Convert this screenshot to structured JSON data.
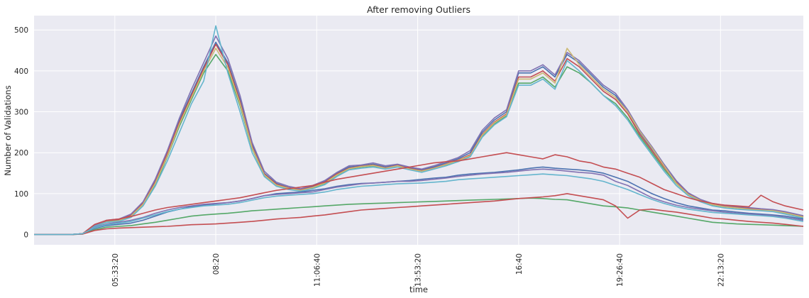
{
  "chart_data": {
    "type": "line",
    "title": "After removing Outliers",
    "xlabel": "time",
    "ylabel": "Number of Validations",
    "xlim": [
      "03:20",
      "24:30"
    ],
    "ylim": [
      -25,
      535
    ],
    "grid": true,
    "legend": "none",
    "x_ticks": [
      "05:33:20",
      "08:20",
      "11:06:40",
      "13:53:20",
      "16:40",
      "19:26:40",
      "22:13:20"
    ],
    "y_ticks": [
      0,
      100,
      200,
      300,
      400,
      500
    ],
    "x": [
      "03:20",
      "03:40",
      "04:00",
      "04:20",
      "04:40",
      "05:00",
      "05:20",
      "05:40",
      "06:00",
      "06:20",
      "06:40",
      "07:00",
      "07:20",
      "07:40",
      "08:00",
      "08:20",
      "08:40",
      "09:00",
      "09:20",
      "09:40",
      "10:00",
      "10:20",
      "10:40",
      "11:00",
      "11:20",
      "11:40",
      "12:00",
      "12:20",
      "12:40",
      "13:00",
      "13:20",
      "13:40",
      "14:00",
      "14:20",
      "14:40",
      "15:00",
      "15:20",
      "15:40",
      "16:00",
      "16:20",
      "16:40",
      "17:00",
      "17:20",
      "17:40",
      "18:00",
      "18:20",
      "18:40",
      "19:00",
      "19:20",
      "19:40",
      "20:00",
      "20:20",
      "20:40",
      "21:00",
      "21:20",
      "21:40",
      "22:00",
      "22:20",
      "22:40",
      "23:00",
      "23:20",
      "23:40",
      "24:00",
      "24:30"
    ],
    "series": [
      {
        "color": "#4c72b0",
        "values": [
          0,
          0,
          0,
          0,
          2,
          22,
          33,
          36,
          48,
          78,
          132,
          200,
          280,
          345,
          410,
          470,
          420,
          330,
          220,
          150,
          125,
          115,
          110,
          118,
          130,
          150,
          165,
          168,
          172,
          165,
          170,
          162,
          158,
          165,
          175,
          185,
          200,
          250,
          280,
          300,
          395,
          395,
          410,
          385,
          440,
          420,
          390,
          360,
          340,
          300,
          250,
          210,
          170,
          130,
          100,
          85,
          75,
          70,
          68,
          65,
          62,
          60,
          55,
          45
        ]
      },
      {
        "color": "#55a868",
        "values": [
          0,
          0,
          0,
          0,
          2,
          20,
          30,
          33,
          44,
          72,
          120,
          190,
          265,
          330,
          395,
          440,
          400,
          315,
          210,
          145,
          120,
          112,
          108,
          114,
          125,
          145,
          160,
          165,
          168,
          162,
          168,
          160,
          155,
          162,
          170,
          180,
          192,
          240,
          270,
          290,
          370,
          370,
          385,
          360,
          410,
          395,
          370,
          340,
          320,
          285,
          240,
          200,
          160,
          125,
          98,
          82,
          72,
          68,
          65,
          62,
          60,
          58,
          52,
          42
        ]
      },
      {
        "color": "#c44e52",
        "values": [
          0,
          0,
          0,
          0,
          2,
          21,
          34,
          37,
          47,
          76,
          128,
          198,
          275,
          340,
          405,
          465,
          415,
          325,
          215,
          148,
          123,
          114,
          109,
          116,
          128,
          148,
          162,
          167,
          170,
          163,
          169,
          161,
          156,
          163,
          172,
          182,
          195,
          245,
          275,
          295,
          385,
          385,
          400,
          375,
          430,
          410,
          380,
          350,
          330,
          295,
          245,
          205,
          165,
          128,
          99,
          84,
          74,
          69,
          66,
          63,
          61,
          59,
          54,
          44
        ]
      },
      {
        "color": "#8172b2",
        "values": [
          0,
          0,
          0,
          0,
          2,
          22,
          35,
          38,
          50,
          80,
          135,
          205,
          285,
          355,
          420,
          485,
          430,
          340,
          225,
          155,
          128,
          118,
          112,
          120,
          132,
          152,
          168,
          170,
          175,
          168,
          172,
          165,
          160,
          168,
          178,
          188,
          205,
          255,
          285,
          305,
          400,
          400,
          415,
          390,
          445,
          425,
          395,
          365,
          345,
          305,
          255,
          215,
          172,
          132,
          102,
          86,
          76,
          71,
          69,
          66,
          63,
          61,
          56,
          46
        ]
      },
      {
        "color": "#ccb974",
        "values": [
          0,
          0,
          0,
          0,
          2,
          20,
          31,
          34,
          45,
          74,
          125,
          192,
          270,
          335,
          400,
          455,
          408,
          320,
          212,
          146,
          121,
          113,
          108,
          115,
          126,
          146,
          161,
          166,
          169,
          162,
          168,
          160,
          155,
          162,
          171,
          181,
          193,
          243,
          273,
          293,
          380,
          380,
          395,
          370,
          455,
          415,
          385,
          355,
          335,
          300,
          252,
          212,
          168,
          126,
          98,
          83,
          73,
          68,
          65,
          62,
          60,
          58,
          53,
          43
        ]
      },
      {
        "color": "#64b5cd",
        "values": [
          0,
          0,
          0,
          0,
          2,
          20,
          30,
          32,
          42,
          70,
          118,
          180,
          250,
          320,
          375,
          510,
          395,
          300,
          200,
          142,
          118,
          110,
          106,
          112,
          122,
          142,
          158,
          162,
          165,
          160,
          165,
          158,
          152,
          160,
          168,
          178,
          190,
          238,
          268,
          288,
          365,
          365,
          380,
          355,
          425,
          400,
          370,
          340,
          315,
          280,
          235,
          195,
          155,
          120,
          95,
          80,
          70,
          65,
          62,
          60,
          58,
          56,
          50,
          40
        ]
      },
      {
        "color": "#4c72b0",
        "values": [
          0,
          0,
          0,
          0,
          2,
          15,
          22,
          25,
          28,
          35,
          45,
          55,
          62,
          68,
          72,
          75,
          78,
          82,
          88,
          95,
          100,
          102,
          104,
          108,
          112,
          118,
          122,
          125,
          126,
          128,
          130,
          132,
          135,
          138,
          140,
          145,
          148,
          150,
          152,
          155,
          158,
          162,
          165,
          162,
          160,
          158,
          155,
          150,
          140,
          130,
          115,
          100,
          88,
          78,
          70,
          65,
          60,
          58,
          55,
          52,
          50,
          48,
          45,
          38
        ]
      },
      {
        "color": "#55a868",
        "values": [
          0,
          0,
          0,
          0,
          1,
          12,
          18,
          20,
          22,
          26,
          30,
          35,
          40,
          45,
          48,
          50,
          52,
          55,
          58,
          60,
          62,
          64,
          66,
          68,
          70,
          72,
          74,
          75,
          76,
          77,
          78,
          79,
          80,
          81,
          82,
          83,
          84,
          85,
          86,
          87,
          88,
          89,
          88,
          86,
          85,
          80,
          75,
          70,
          68,
          65,
          60,
          55,
          50,
          45,
          40,
          35,
          30,
          28,
          26,
          25,
          24,
          23,
          22,
          20
        ]
      },
      {
        "color": "#c44e52",
        "values": [
          0,
          0,
          0,
          0,
          1,
          10,
          14,
          16,
          17,
          18,
          19,
          20,
          22,
          24,
          25,
          26,
          28,
          30,
          32,
          35,
          38,
          40,
          42,
          45,
          48,
          52,
          56,
          60,
          62,
          64,
          66,
          68,
          70,
          72,
          74,
          76,
          78,
          80,
          82,
          85,
          88,
          90,
          92,
          95,
          100,
          95,
          90,
          85,
          70,
          40,
          60,
          62,
          58,
          55,
          50,
          45,
          40,
          38,
          35,
          32,
          30,
          28,
          25,
          20
        ]
      },
      {
        "color": "#8172b2",
        "values": [
          0,
          0,
          0,
          0,
          2,
          18,
          26,
          30,
          35,
          42,
          52,
          60,
          66,
          70,
          74,
          76,
          78,
          82,
          88,
          95,
          98,
          100,
          102,
          104,
          110,
          116,
          120,
          124,
          126,
          128,
          130,
          130,
          132,
          135,
          138,
          142,
          145,
          148,
          150,
          152,
          155,
          158,
          160,
          158,
          155,
          152,
          150,
          145,
          130,
          120,
          105,
          90,
          80,
          72,
          66,
          62,
          58,
          55,
          52,
          50,
          48,
          46,
          42,
          35
        ]
      },
      {
        "color": "#c44e52",
        "values": [
          0,
          0,
          0,
          0,
          2,
          25,
          35,
          38,
          44,
          52,
          60,
          66,
          70,
          74,
          78,
          82,
          86,
          90,
          96,
          102,
          108,
          112,
          116,
          120,
          128,
          135,
          140,
          145,
          150,
          155,
          160,
          165,
          170,
          175,
          178,
          180,
          185,
          190,
          195,
          200,
          195,
          190,
          185,
          195,
          190,
          180,
          175,
          165,
          160,
          150,
          140,
          125,
          110,
          100,
          90,
          82,
          76,
          72,
          70,
          68,
          96,
          80,
          70,
          60
        ]
      },
      {
        "color": "#64b5cd",
        "values": [
          0,
          0,
          0,
          0,
          2,
          17,
          24,
          28,
          32,
          40,
          48,
          56,
          62,
          66,
          70,
          72,
          74,
          78,
          84,
          90,
          94,
          96,
          98,
          100,
          104,
          110,
          114,
          118,
          120,
          122,
          124,
          125,
          126,
          128,
          130,
          134,
          136,
          138,
          140,
          142,
          144,
          146,
          148,
          146,
          144,
          140,
          136,
          130,
          120,
          110,
          98,
          86,
          76,
          68,
          62,
          58,
          54,
          52,
          50,
          48,
          46,
          44,
          40,
          32
        ]
      }
    ]
  }
}
